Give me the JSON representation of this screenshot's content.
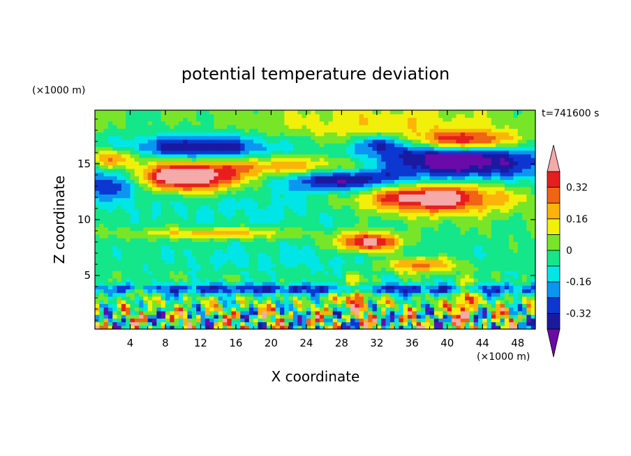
{
  "chart_data": {
    "type": "heatmap",
    "title": "potential temperature deviation",
    "xlabel": "X coordinate",
    "ylabel": "Z coordinate",
    "x_unit": "(×1000 m)",
    "y_unit": "(×1000 m)",
    "time_label": "t=741600 s",
    "xlim": [
      0,
      50
    ],
    "ylim": [
      0.2,
      19.8
    ],
    "x_ticks": [
      4,
      8,
      12,
      16,
      20,
      24,
      28,
      32,
      36,
      40,
      44,
      48
    ],
    "y_ticks": [
      5,
      10,
      15
    ],
    "colorbar": {
      "tick_labels": [
        "0.32",
        "0.16",
        "0",
        "-0.16",
        "-0.32"
      ],
      "tick_values": [
        0.32,
        0.16,
        0,
        -0.16,
        -0.32
      ],
      "levels": [
        -0.4,
        -0.32,
        -0.24,
        -0.16,
        -0.08,
        0,
        0.08,
        0.16,
        0.24,
        0.32,
        0.4
      ],
      "colors": [
        "#6a0aa8",
        "#1a1aa0",
        "#0c37d0",
        "#0a96f0",
        "#00e6e6",
        "#14e68a",
        "#78e628",
        "#f0f00a",
        "#fcb40a",
        "#f06414",
        "#e81e1e",
        "#f5aaaa"
      ]
    },
    "features": [
      {
        "value": 0.45,
        "x": 10,
        "z": 13.8,
        "note": "pink band"
      },
      {
        "value": 0.45,
        "x": 38,
        "z": 12.0,
        "note": "pink band"
      },
      {
        "value": 0.45,
        "x": 42,
        "z": 17.0,
        "note": "pink band"
      },
      {
        "value": -0.45,
        "x": 40,
        "z": 15.2,
        "note": "purple core"
      },
      {
        "value": -0.35,
        "x": 12,
        "z": 16.5,
        "note": "blue band"
      },
      {
        "value": 0.45,
        "x": 31,
        "z": 8.0,
        "note": "pink patch"
      }
    ]
  }
}
